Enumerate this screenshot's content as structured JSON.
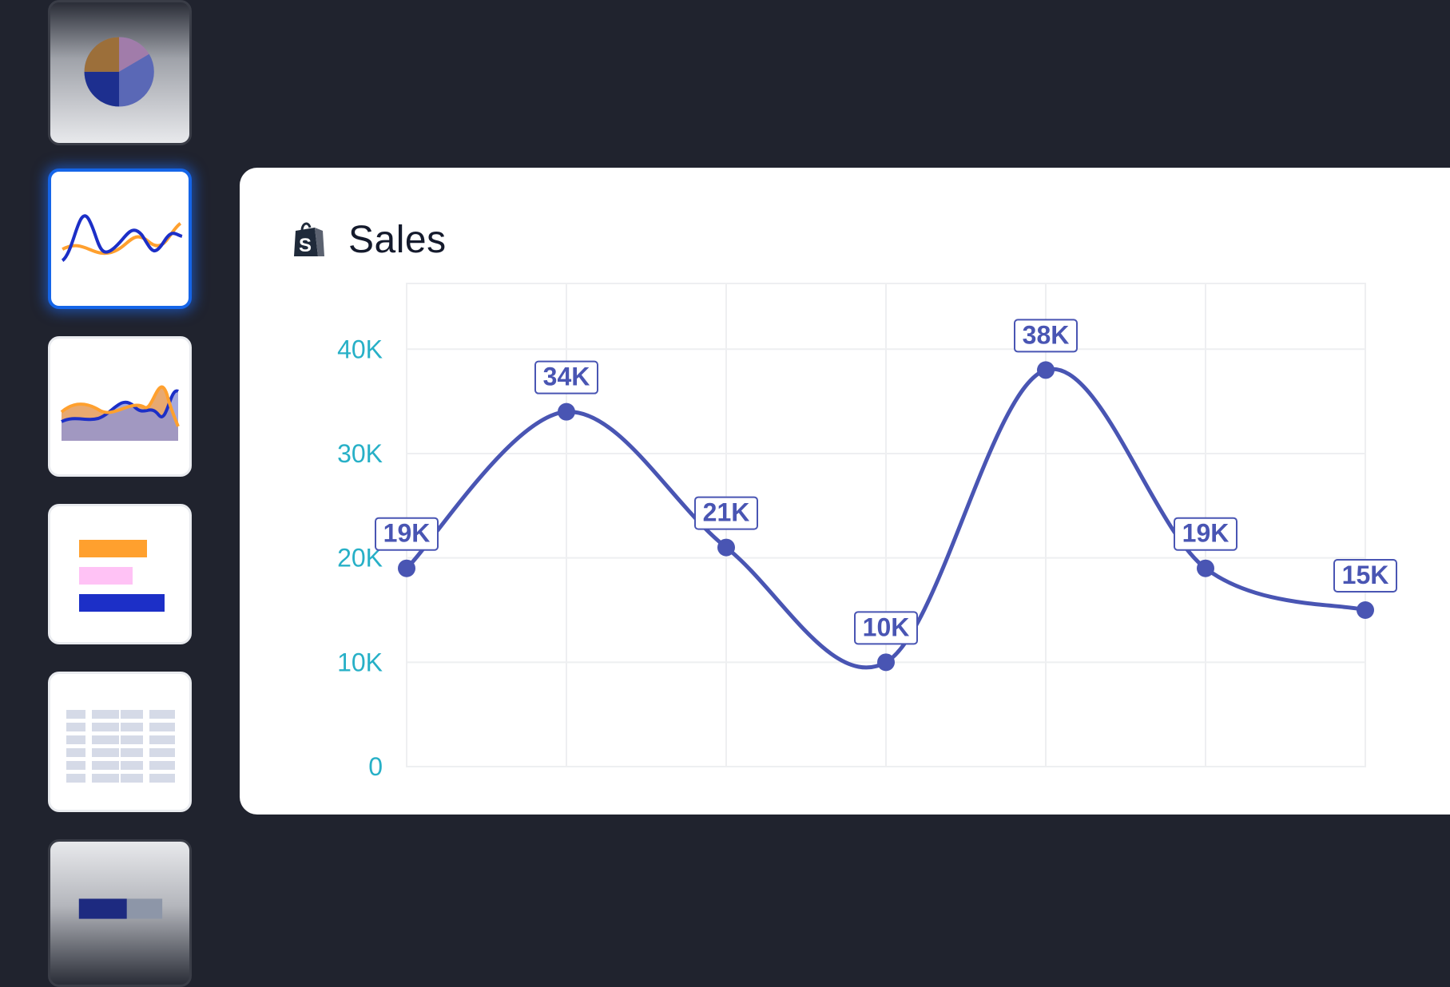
{
  "sidebar": {
    "items": [
      {
        "name": "pie-chart",
        "icon": "pie-chart-icon",
        "selected": false
      },
      {
        "name": "line-chart",
        "icon": "line-chart-icon",
        "selected": true
      },
      {
        "name": "area-chart",
        "icon": "area-chart-icon",
        "selected": false
      },
      {
        "name": "bar-chart",
        "icon": "bar-chart-icon",
        "selected": false
      },
      {
        "name": "table",
        "icon": "table-icon",
        "selected": false
      },
      {
        "name": "progress-bar",
        "icon": "progress-bar-icon",
        "selected": false
      }
    ]
  },
  "card": {
    "title": "Sales",
    "logo": "shopify-bag-icon"
  },
  "colors": {
    "background": "#20232e",
    "accent": "#1565e8",
    "series": "#4955b3",
    "axis_text": "#27b0c7",
    "orange": "#ffa02e",
    "pink": "#ffc2f5",
    "navy": "#1c2fc7"
  },
  "chart_data": {
    "type": "line",
    "x": [
      1,
      2,
      3,
      4,
      5,
      6,
      7
    ],
    "series": [
      {
        "values": [
          19,
          34,
          21,
          10,
          38,
          19,
          15
        ],
        "labels": [
          "19K",
          "34K",
          "21K",
          "10K",
          "38K",
          "19K",
          "15K"
        ]
      }
    ],
    "yticks": [
      "0",
      "10K",
      "20K",
      "30K",
      "40K"
    ],
    "ytick_values": [
      0,
      10,
      20,
      30,
      40
    ],
    "ylim": [
      0,
      44
    ],
    "grid": true,
    "smooth": true
  }
}
